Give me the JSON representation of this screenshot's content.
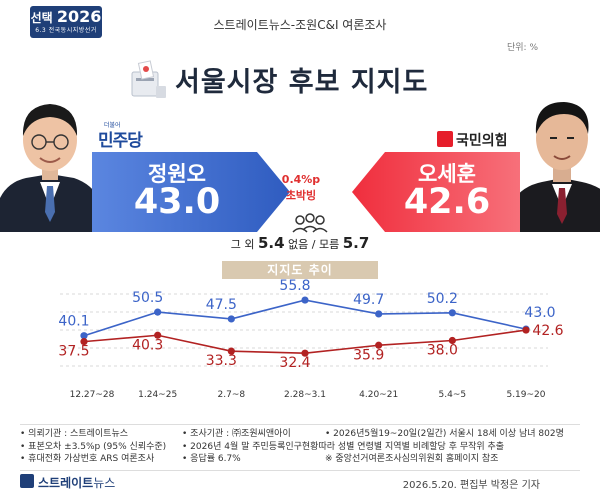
{
  "header": {
    "badge_line1": "선택",
    "badge_year": "2026",
    "badge_line2": "6.3 전국동시지방선거",
    "source": "스트레이트뉴스-조원C&I 여론조사",
    "unit": "단위: %",
    "title": "서울시장 후보 지지도"
  },
  "candidates": {
    "left": {
      "party_small": "더불어",
      "party": "민주당",
      "name": "정원오",
      "value": "43.0",
      "color": "#3f6fd4"
    },
    "right": {
      "party": "국민의힘",
      "name": "오세훈",
      "value": "42.6",
      "color": "#ef4050"
    }
  },
  "gap": {
    "pct": "0.4%p",
    "text": "초박빙"
  },
  "others": {
    "label1": "그 외",
    "value1": "5.4",
    "label2": "없음 / 모름",
    "value2": "5.7"
  },
  "trend_label": "지지도 추이",
  "chart_data": {
    "type": "line",
    "title": "",
    "categories": [
      "12.27~28",
      "1.24~25",
      "2.7~8",
      "2.28~3.1",
      "4.20~21",
      "5.4~5",
      "5.19~20"
    ],
    "series": [
      {
        "values": [
          40.1,
          50.5,
          47.5,
          55.8,
          49.7,
          50.2,
          43.0
        ],
        "color": "#3c64c8"
      },
      {
        "values": [
          37.5,
          40.3,
          33.3,
          32.4,
          35.9,
          38.0,
          42.6
        ],
        "color": "#b22222"
      }
    ],
    "ylim": [
      25,
      62
    ],
    "xlabel": "",
    "ylabel": "",
    "grid": "horizontal dashed"
  },
  "footer": {
    "col1": [
      "• 의뢰기관 : 스트레이트뉴스",
      "• 표본오차 ±3.5%p (95% 신뢰수준)",
      "• 휴대전화 가상번호 ARS 여론조사"
    ],
    "col2": [
      "• 조사기관 : ㈜조원씨앤아이",
      "• 2026년 4월 말 주민등록인구현황따라 성별 연령별 지역별 비례할당 후 무작위 추출",
      "• 응답률 6.7%"
    ],
    "col3": [
      "• 2026년5월19~20일(2일간) 서울시 18세 이상 남녀 802명",
      "",
      "※ 중앙선거여론조사심의위원회 홈페이지 참조"
    ]
  },
  "brand": {
    "name": "스트레이트",
    "sub": "뉴스"
  },
  "credit": "2026.5.20. 편집부 박정은 기자"
}
